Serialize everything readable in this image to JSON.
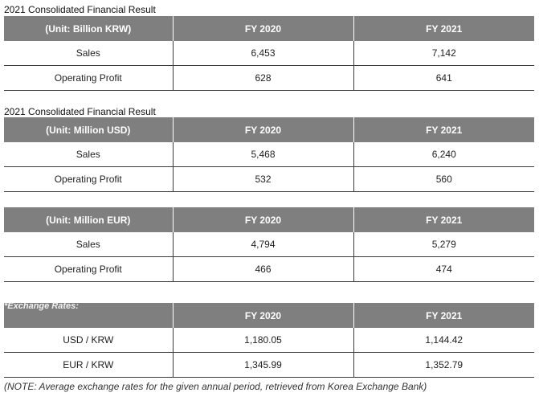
{
  "tables": [
    {
      "caption": "2021 Consolidated Financial Result",
      "unit": "(Unit: Billion KRW)",
      "col1": "FY 2020",
      "col2": "FY 2021",
      "rows": [
        {
          "label": "Sales",
          "v1": "6,453",
          "v2": "7,142"
        },
        {
          "label": "Operating Profit",
          "v1": "628",
          "v2": "641"
        }
      ]
    },
    {
      "caption": "2021 Consolidated Financial Result",
      "unit": "(Unit: Million USD)",
      "col1": "FY 2020",
      "col2": "FY 2021",
      "rows": [
        {
          "label": "Sales",
          "v1": "5,468",
          "v2": "6,240"
        },
        {
          "label": "Operating Profit",
          "v1": "532",
          "v2": "560"
        }
      ]
    },
    {
      "caption": "",
      "unit": "(Unit: Million EUR)",
      "col1": "FY 2020",
      "col2": "FY 2021",
      "rows": [
        {
          "label": "Sales",
          "v1": "4,794",
          "v2": "5,279"
        },
        {
          "label": "Operating Profit",
          "v1": "466",
          "v2": "474"
        }
      ]
    }
  ],
  "exchange": {
    "caption": "*Exchange Rates:",
    "col1": "FY 2020",
    "col2": "FY 2021",
    "rows": [
      {
        "label": "USD / KRW",
        "v1": "1,180.05",
        "v2": "1,144.42"
      },
      {
        "label": "EUR / KRW",
        "v1": "1,345.99",
        "v2": "1,352.79"
      }
    ]
  },
  "note": "(NOTE: Average exchange rates for the given annual period, retrieved from Korea Exchange Bank)"
}
